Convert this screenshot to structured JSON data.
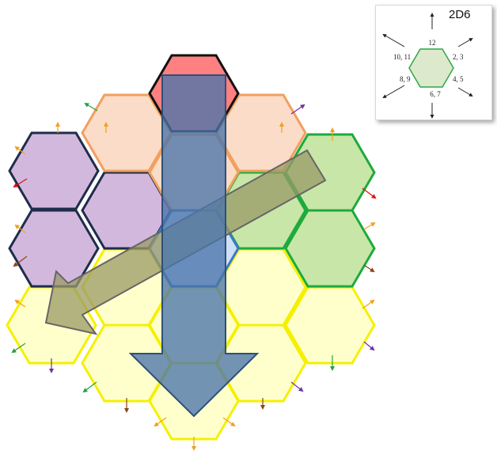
{
  "legend": {
    "title": "2D6",
    "labels": {
      "n": "12",
      "ne": "2, 3",
      "se": "4, 5",
      "s": "6, 7",
      "sw": "8, 9",
      "nw": "10, 11"
    }
  },
  "colors": {
    "red": "#ff8080",
    "orange": "#fadcc8",
    "orange_edge": "#f0a060",
    "purple": "#d3b8de",
    "purple_edge": "#1e2d4a",
    "green": "#c8e6a8",
    "green_edge": "#1eaa3c",
    "yellow": "#ffffcc",
    "yellow_edge": "#f5f000",
    "blue": "#5a82b4",
    "olive": "#999966"
  }
}
